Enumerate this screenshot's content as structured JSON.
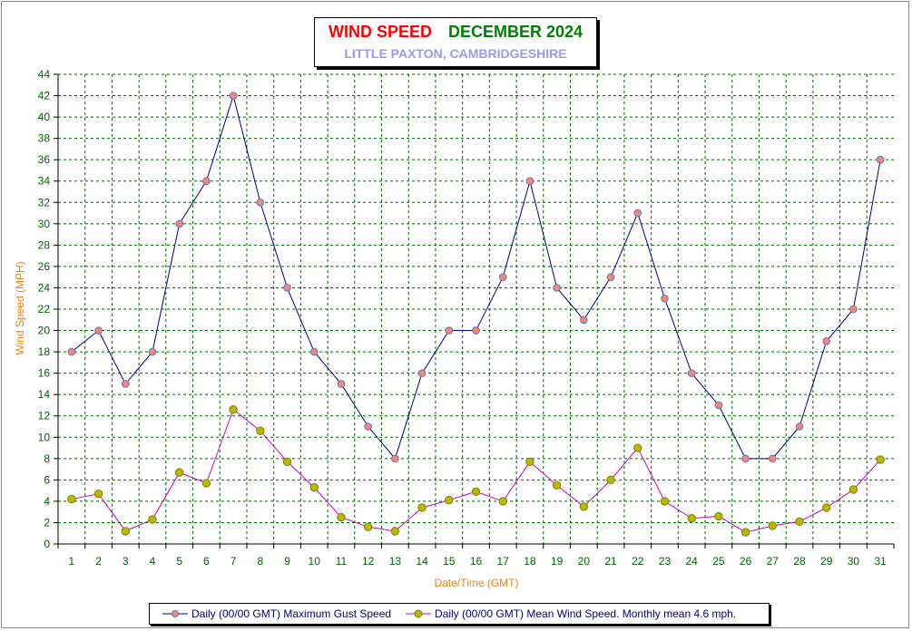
{
  "title": {
    "part1": "WIND SPEED",
    "part2": "DECEMBER 2024",
    "subtitle": "LITTLE PAXTON, CAMBRIDGESHIRE"
  },
  "colors": {
    "gust_line": "#000080",
    "gust_marker": "#ff8080",
    "mean_line": "#cc00cc",
    "mean_marker": "#b8b800",
    "grid": "#006400",
    "axis_label": "#ff8000",
    "tick_label": "#006400"
  },
  "chart_data": {
    "type": "line",
    "xlabel": "Date/Time (GMT)",
    "ylabel": "Wind Speed (MPH)",
    "x": [
      1,
      2,
      3,
      4,
      5,
      6,
      7,
      8,
      9,
      10,
      11,
      12,
      13,
      14,
      15,
      16,
      17,
      18,
      19,
      20,
      21,
      22,
      23,
      24,
      25,
      26,
      27,
      28,
      29,
      30,
      31
    ],
    "ylim": [
      0,
      44
    ],
    "ytick_step": 2,
    "grid": true,
    "legend_position": "bottom",
    "series": [
      {
        "name": "Daily (00/00 GMT) Maximum Gust Speed",
        "values": [
          18,
          20,
          15,
          18,
          30,
          34,
          42,
          32,
          24,
          18,
          15,
          11,
          8,
          16,
          20,
          20,
          25,
          34,
          24,
          21,
          25,
          31,
          23,
          16,
          13,
          8,
          8,
          11,
          19,
          22,
          36
        ]
      },
      {
        "name": "Daily (00/00 GMT) Mean Wind Speed. Monthly mean 4.6 mph.",
        "values": [
          4.2,
          4.7,
          1.2,
          2.3,
          6.7,
          5.7,
          12.6,
          10.6,
          7.7,
          5.3,
          2.5,
          1.6,
          1.2,
          3.4,
          4.1,
          4.9,
          4.0,
          7.7,
          5.5,
          3.5,
          6.0,
          9.0,
          4.0,
          2.4,
          2.6,
          1.1,
          1.7,
          2.1,
          3.4,
          5.1,
          7.9
        ]
      }
    ]
  }
}
